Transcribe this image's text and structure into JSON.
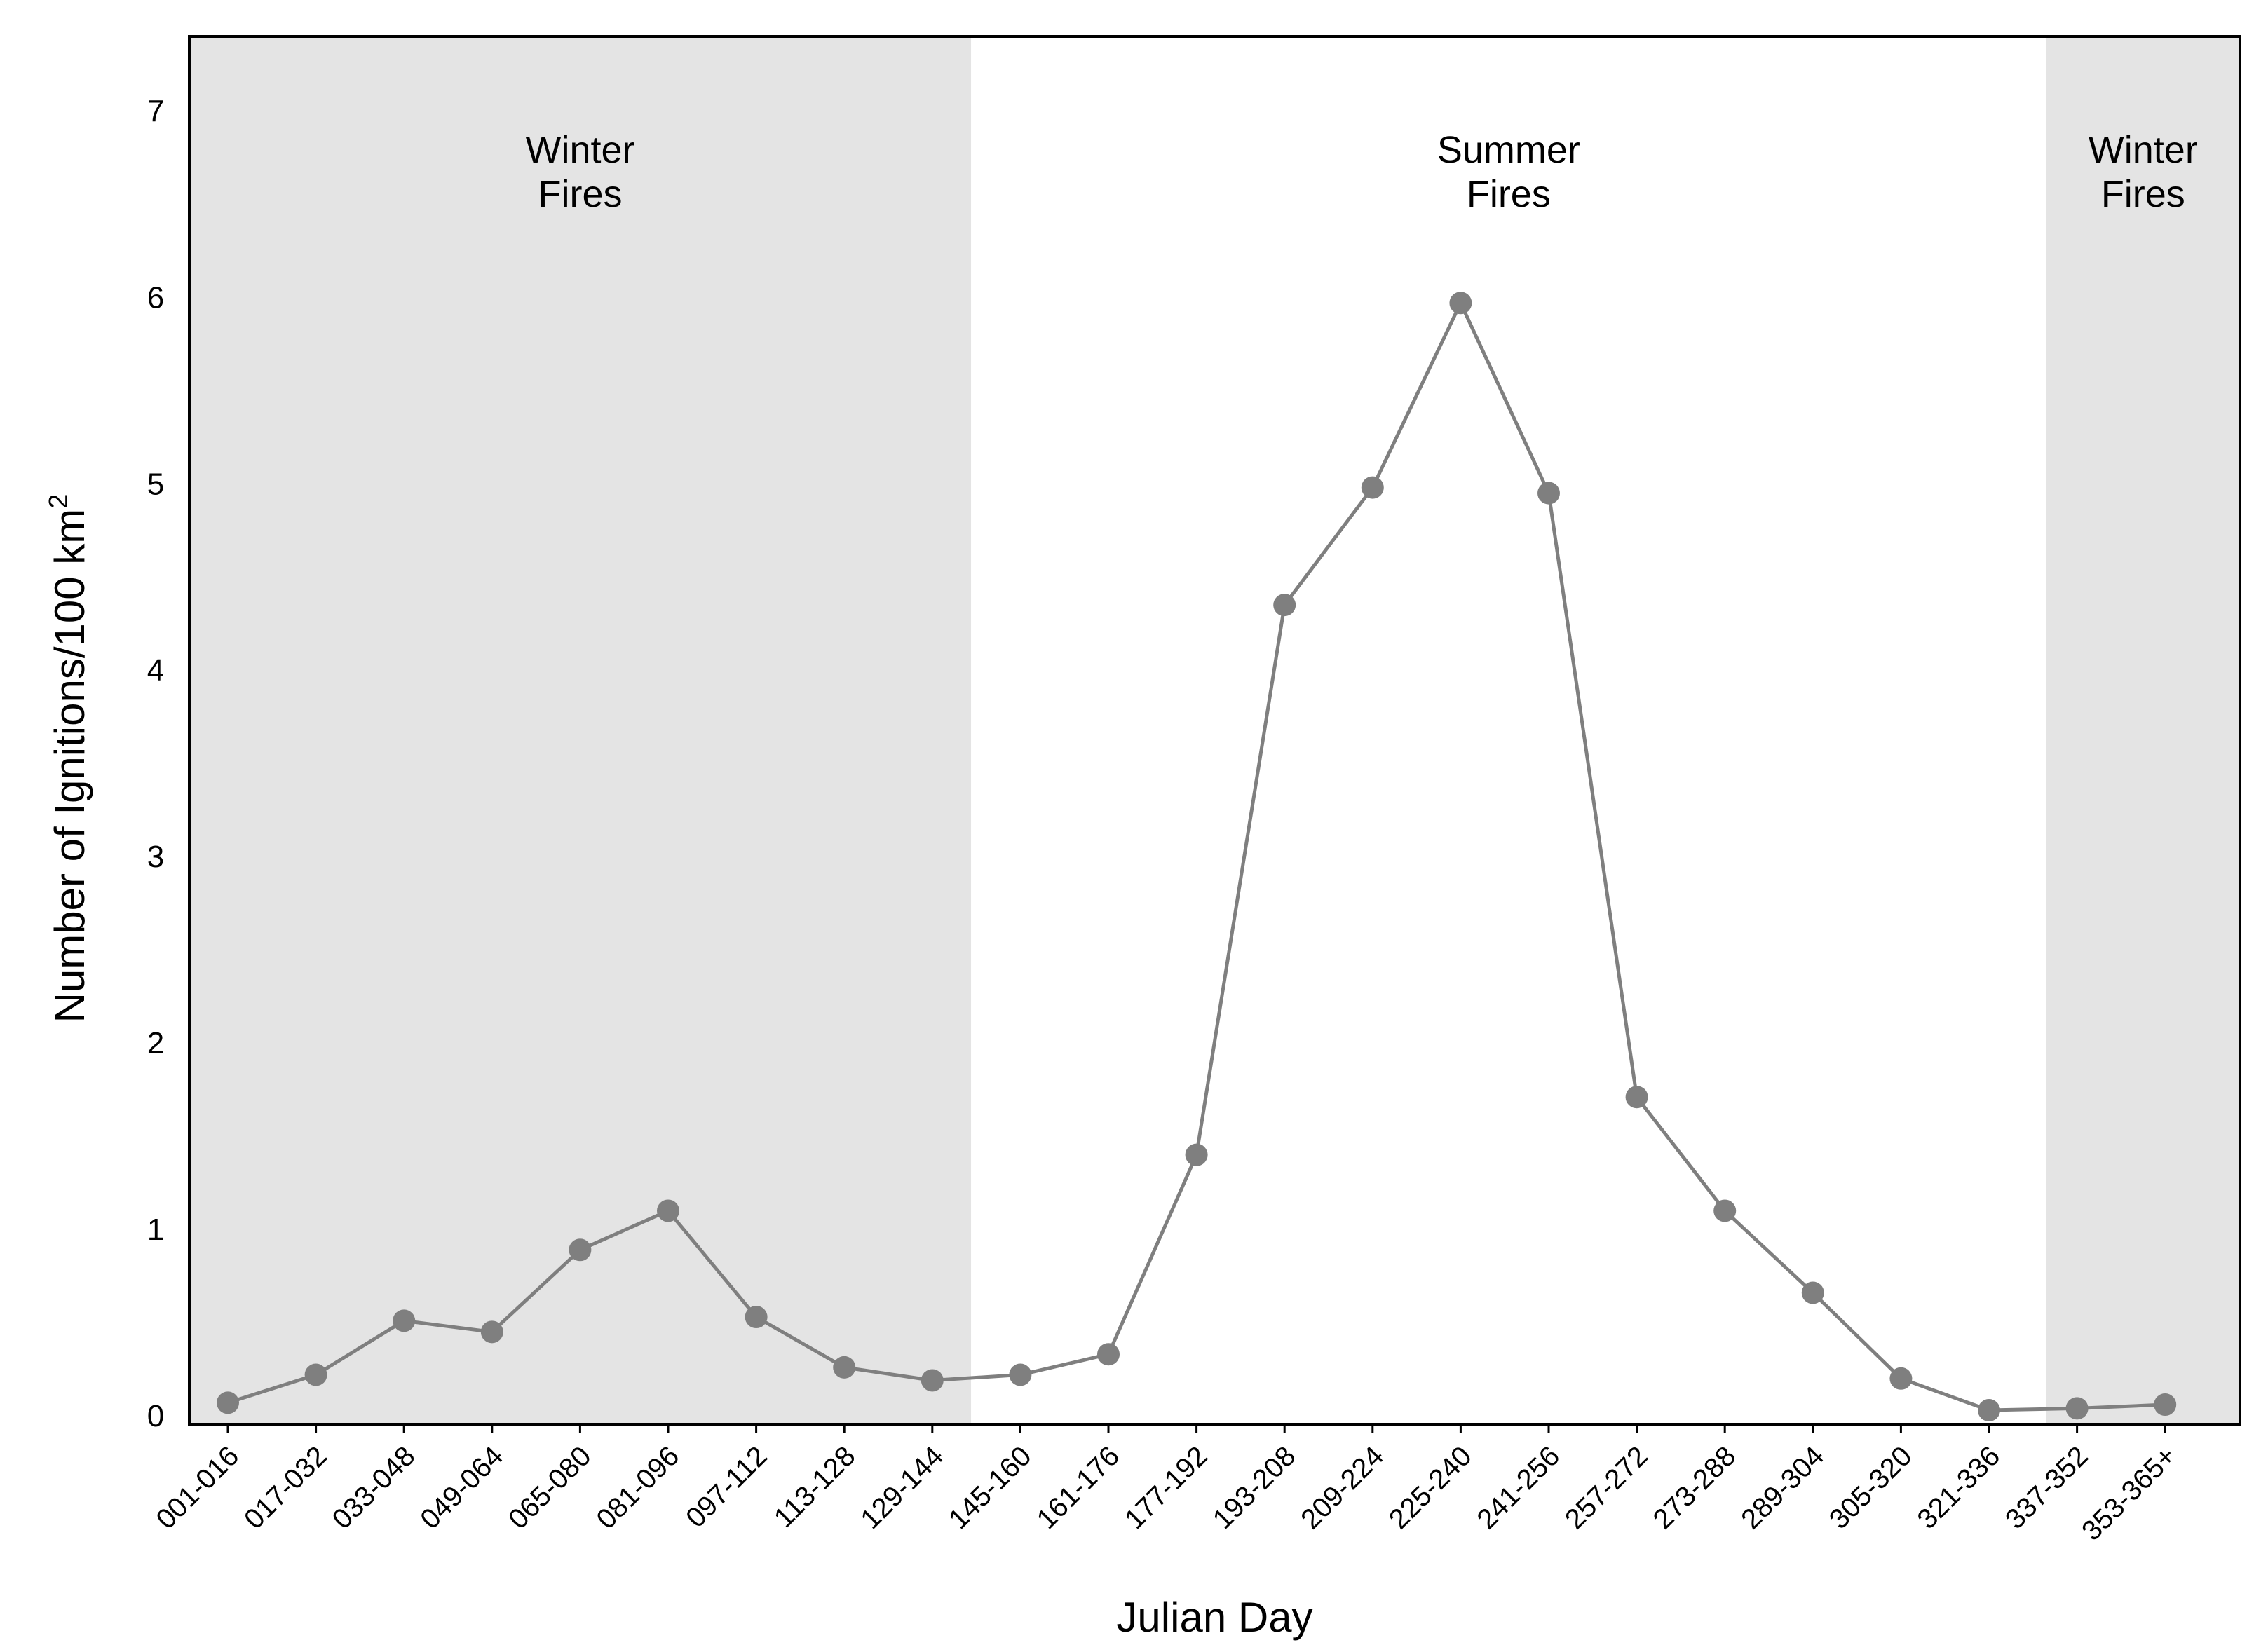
{
  "chart_data": {
    "type": "line",
    "title": "",
    "xlabel": "Julian Day",
    "ylabel": "Number of Ignitions/100 km",
    "ylabel_superscript": "2",
    "ylim": [
      0,
      7.4
    ],
    "yticks": [
      0,
      1,
      2,
      3,
      4,
      5,
      6,
      7
    ],
    "grid": false,
    "legend": "none",
    "categories": [
      "001-016",
      "017-032",
      "033-048",
      "049-064",
      "065-080",
      "081-096",
      "097-112",
      "113-128",
      "129-144",
      "145-160",
      "161-176",
      "177-192",
      "193-208",
      "209-224",
      "225-240",
      "241-256",
      "257-272",
      "273-288",
      "289-304",
      "305-320",
      "321-336",
      "337-352",
      "353-365+"
    ],
    "series": [
      {
        "values": [
          0.07,
          0.22,
          0.51,
          0.45,
          0.89,
          1.1,
          0.53,
          0.26,
          0.19,
          0.22,
          0.33,
          1.4,
          4.35,
          4.98,
          5.97,
          4.95,
          1.71,
          1.1,
          0.66,
          0.2,
          0.03,
          0.04,
          0.06
        ]
      }
    ],
    "regions": [
      {
        "label_line1": "Winter",
        "label_line2": "Fires",
        "from_index": 0,
        "to_index": 8.44,
        "shaded": true
      },
      {
        "label_line1": "Summer",
        "label_line2": "Fires",
        "from_index": 8.44,
        "to_index": 20.65,
        "shaded": false
      },
      {
        "label_line1": "Winter",
        "label_line2": "Fires",
        "from_index": 20.65,
        "to_index": 22.55,
        "shaded": true
      }
    ],
    "colors": {
      "shade": "#e4e4e4",
      "line": "#7f7f7f",
      "marker": "#7f7f7f",
      "axis": "#000000"
    }
  }
}
